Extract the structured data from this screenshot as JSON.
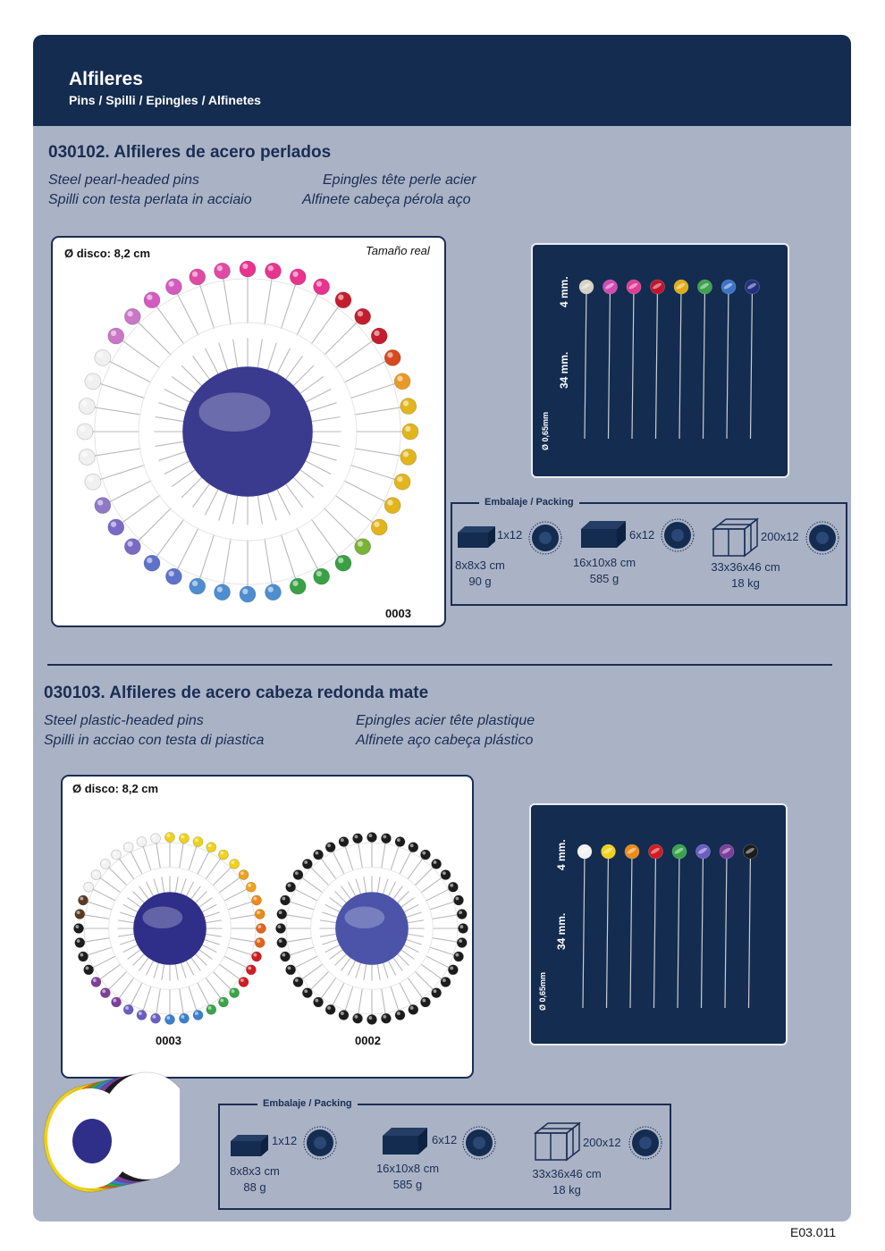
{
  "header": {
    "title": "Alfileres",
    "subtitle": "Pins / Spilli / Epingles / Alfinetes"
  },
  "section1": {
    "title": "030102. Alfileres de acero perlados",
    "desc": [
      "Steel pearl-headed pins",
      "Spilli con testa perlata in acciaio",
      "Epingles tête perle acier",
      "Alfinete cabeça pérola aço"
    ],
    "disc_label": "Ø disco: 8,2 cm",
    "real_size": "Tamaño real",
    "photo_code": "0003",
    "dims": {
      "head": "4 mm.",
      "length": "34 mm.",
      "diameter": "Ø 0,65mm"
    },
    "head_colors": [
      "#d7d2c4",
      "#d14bb2",
      "#e13d93",
      "#c3142a",
      "#e2ad14",
      "#3ea34b",
      "#3b73c9",
      "#233082"
    ],
    "ring_colors": [
      "#e8338f",
      "#e8338f",
      "#e8338f",
      "#e8338f",
      "#c41e2e",
      "#c41e2e",
      "#c41e2e",
      "#d64a1e",
      "#e89a27",
      "#e2b51c",
      "#e2b51c",
      "#e2b51c",
      "#e2b51c",
      "#e2b51c",
      "#e2b51c",
      "#7ab334",
      "#39a046",
      "#39a046",
      "#39a046",
      "#4d8dd0",
      "#4d8dd0",
      "#4d8dd0",
      "#4d8dd0",
      "#5d72c9",
      "#5d72c9",
      "#7a6ac6",
      "#7a6ac6",
      "#8f78c6",
      "#f0f0f0",
      "#f0f0f0",
      "#f0f0f0",
      "#f0f0f0",
      "#f0f0f0",
      "#f0f0f0",
      "#c977c6",
      "#c977c6",
      "#d35bc0",
      "#d35bc0",
      "#e04aa4",
      "#e04aa4"
    ],
    "packing": {
      "title": "Embalaje / Packing",
      "items": [
        {
          "qty": "1x12",
          "dims": "8x8x3 cm",
          "weight": "90 g"
        },
        {
          "qty": "6x12",
          "dims": "16x10x8 cm",
          "weight": "585 g"
        },
        {
          "qty": "200x12",
          "dims": "33x36x46 cm",
          "weight": "18 kg"
        }
      ]
    }
  },
  "section2": {
    "title": "030103. Alfileres de acero cabeza redonda mate",
    "desc": [
      "Steel plastic-headed pins",
      "Spilli in acciao con testa di piastica",
      "Epingles acier tête plastique",
      "Alfinete aço cabeça plástico"
    ],
    "disc_label": "Ø disco: 8,2 cm",
    "photo_codes": [
      "0003",
      "0002"
    ],
    "dims": {
      "head": "4 mm.",
      "length": "34 mm.",
      "diameter": "Ø 0,65mm"
    },
    "head_colors": [
      "#f2f2f2",
      "#f0d21a",
      "#ee8a17",
      "#d01c22",
      "#38a548",
      "#6a5ec4",
      "#7e3f9c",
      "#1c1c1c"
    ],
    "ring_colors": [
      "#f0d21a",
      "#f0d21a",
      "#f0d21a",
      "#f0d21a",
      "#f0d21a",
      "#f0d21a",
      "#f0a21a",
      "#f0a21a",
      "#ee8a17",
      "#ee8a17",
      "#e2651b",
      "#e2651b",
      "#d01c22",
      "#d01c22",
      "#d01c22",
      "#38a548",
      "#38a548",
      "#38a548",
      "#3a7fd0",
      "#3a7fd0",
      "#3a7fd0",
      "#6a5ec4",
      "#6a5ec4",
      "#6a5ec4",
      "#7e3f9c",
      "#7e3f9c",
      "#7e3f9c",
      "#1c1c1c",
      "#1c1c1c",
      "#1c1c1c",
      "#1c1c1c",
      "#5a3a22",
      "#5a3a22",
      "#f2f2f2",
      "#f2f2f2",
      "#f2f2f2",
      "#f2f2f2",
      "#f2f2f2",
      "#f2f2f2",
      "#f2f2f2"
    ],
    "packing": {
      "title": "Embalaje / Packing",
      "items": [
        {
          "qty": "1x12",
          "dims": "8x8x3 cm",
          "weight": "88 g"
        },
        {
          "qty": "6x12",
          "dims": "16x10x8 cm",
          "weight": "585 g"
        },
        {
          "qty": "200x12",
          "dims": "33x36x46 cm",
          "weight": "18 kg"
        }
      ]
    }
  },
  "footer": {
    "code": "E03.011"
  }
}
